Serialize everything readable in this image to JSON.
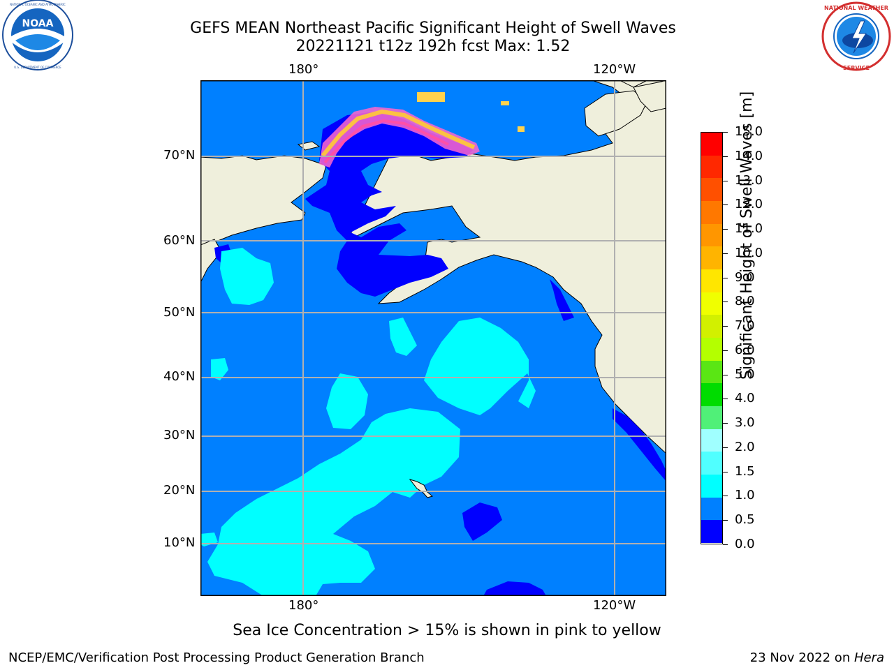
{
  "header": {
    "title_line1": "GEFS MEAN Northeast Pacific Significant Height of Swell Waves",
    "title_line2": "20221121 t12z 192h fcst   Max: 1.52"
  },
  "logos": {
    "left": {
      "name": "NOAA",
      "text": "NOAA",
      "ring_text": "NATIONAL OCEANIC AND ATMOSPHERIC ADMINISTRATION · U.S. DEPARTMENT OF COMMERCE"
    },
    "right": {
      "name": "National Weather Service",
      "ring_text": "NATIONAL WEATHER SERVICE"
    }
  },
  "map": {
    "lon_labels_top": [
      "180°",
      "120°W"
    ],
    "lon_labels_bottom": [
      "180°",
      "120°W"
    ],
    "lat_labels": [
      "70°N",
      "60°N",
      "50°N",
      "40°N",
      "30°N",
      "20°N",
      "10°N"
    ],
    "land_color": "#efefdc",
    "ocean_base_color": "#0080ff"
  },
  "colorbar": {
    "label": "Significant Height of Swell Waves [m]",
    "ticks": [
      "15.0",
      "14.0",
      "13.0",
      "12.0",
      "11.0",
      "10.0",
      "9.0",
      "8.0",
      "7.0",
      "6.0",
      "5.0",
      "4.0",
      "3.0",
      "2.0",
      "1.5",
      "1.0",
      "0.5",
      "0.0"
    ],
    "colors_top_to_bottom": [
      "#ff0000",
      "#ff2800",
      "#ff5000",
      "#ff7800",
      "#ff9600",
      "#ffb400",
      "#ffe600",
      "#f0ff00",
      "#d2f000",
      "#b4ff00",
      "#5ae614",
      "#00dc00",
      "#50f078",
      "#a0ffff",
      "#50ffff",
      "#00ffff",
      "#0080ff",
      "#0000ff"
    ]
  },
  "note": "Sea Ice Concentration > 15% is shown in pink to yellow",
  "footer": {
    "left": "NCEP/EMC/Verification Post Processing Product Generation Branch",
    "right_date": "23 Nov 2022 on ",
    "right_host": "Hera"
  }
}
